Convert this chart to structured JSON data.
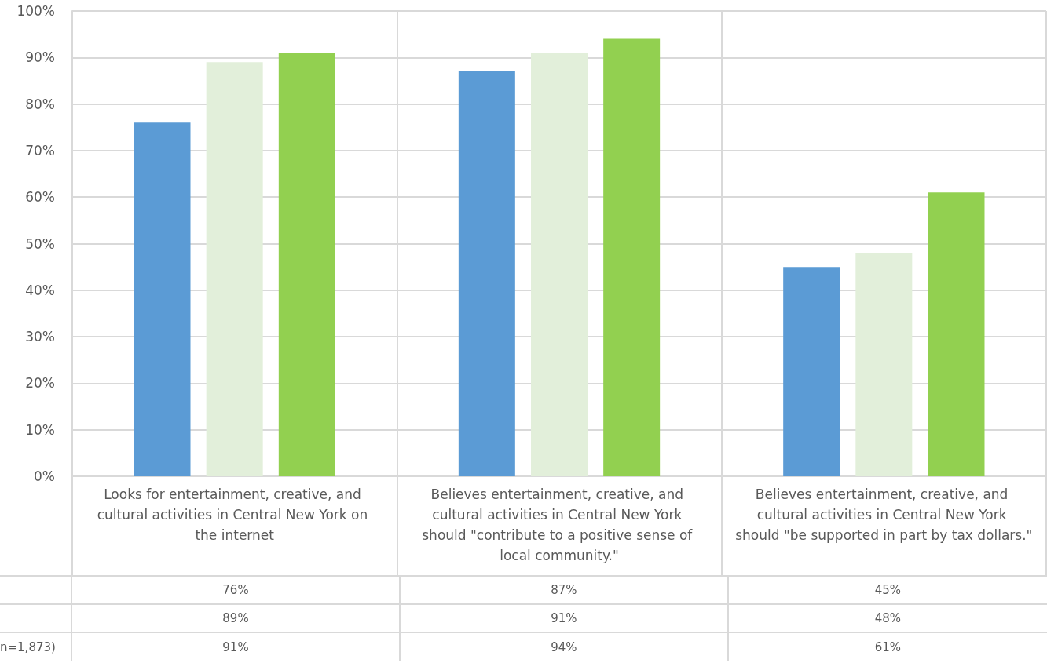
{
  "chart_data": {
    "type": "bar",
    "categories": [
      "Looks for entertainment, creative, and cultural activities in Central New York on the internet",
      "Believes entertainment, creative, and cultural activities in Central New York should \"contribute to a positive sense of local community.\"",
      "Believes entertainment, creative, and cultural activities in Central New York should \"be supported in part by tax dollars.\""
    ],
    "series": [
      {
        "color": "#5b9bd5",
        "values": [
          76,
          87,
          45
        ],
        "value_labels": [
          "76%",
          "87%",
          "45%"
        ]
      },
      {
        "color": "#e2efda",
        "values": [
          89,
          91,
          48
        ],
        "value_labels": [
          "89%",
          "91%",
          "48%"
        ]
      },
      {
        "name": "n=1,873)",
        "color": "#92d050",
        "values": [
          91,
          94,
          61
        ],
        "value_labels": [
          "91%",
          "94%",
          "61%"
        ]
      }
    ],
    "ylim": [
      0,
      100
    ],
    "yticks": [
      {
        "value": 0,
        "label": "0%"
      },
      {
        "value": 10,
        "label": "10%"
      },
      {
        "value": 20,
        "label": "20%"
      },
      {
        "value": 30,
        "label": "30%"
      },
      {
        "value": 40,
        "label": "40%"
      },
      {
        "value": 50,
        "label": "50%"
      },
      {
        "value": 60,
        "label": "60%"
      },
      {
        "value": 70,
        "label": "70%"
      },
      {
        "value": 80,
        "label": "80%"
      },
      {
        "value": 90,
        "label": "90%"
      },
      {
        "value": 100,
        "label": "100%"
      }
    ],
    "grid": true,
    "legend": "bottom"
  }
}
